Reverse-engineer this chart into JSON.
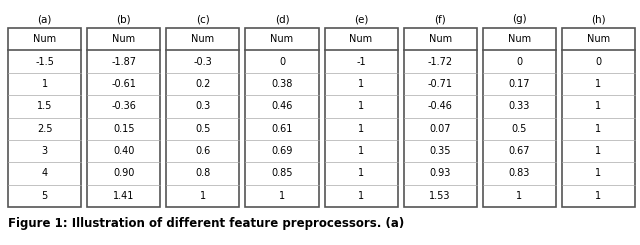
{
  "tables": [
    {
      "label": "(a)",
      "rows": [
        "Num",
        "-1.5",
        "1",
        "1.5",
        "2.5",
        "3",
        "4",
        "5"
      ]
    },
    {
      "label": "(b)",
      "rows": [
        "Num",
        "-1.87",
        "-0.61",
        "-0.36",
        "0.15",
        "0.40",
        "0.90",
        "1.41"
      ]
    },
    {
      "label": "(c)",
      "rows": [
        "Num",
        "-0.3",
        "0.2",
        "0.3",
        "0.5",
        "0.6",
        "0.8",
        "1"
      ]
    },
    {
      "label": "(d)",
      "rows": [
        "Num",
        "0",
        "0.38",
        "0.46",
        "0.61",
        "0.69",
        "0.85",
        "1"
      ]
    },
    {
      "label": "(e)",
      "rows": [
        "Num",
        "-1",
        "1",
        "1",
        "1",
        "1",
        "1",
        "1"
      ]
    },
    {
      "label": "(f)",
      "rows": [
        "Num",
        "-1.72",
        "-0.71",
        "-0.46",
        "0.07",
        "0.35",
        "0.93",
        "1.53"
      ]
    },
    {
      "label": "(g)",
      "rows": [
        "Num",
        "0",
        "0.17",
        "0.33",
        "0.5",
        "0.67",
        "0.83",
        "1"
      ]
    },
    {
      "label": "(h)",
      "rows": [
        "Num",
        "0",
        "1",
        "1",
        "1",
        "1",
        "1",
        "1"
      ]
    }
  ],
  "caption": "Figure 1: Illustration of different feature preprocessors. (a)",
  "cell_fill": "#ffffff",
  "outer_border_color": "#555555",
  "inner_border_color": "#aaaaaa",
  "font_size": 7.0,
  "label_font_size": 7.5,
  "caption_font_size": 8.5,
  "outer_linewidth": 1.2,
  "inner_linewidth": 0.5,
  "fig_width": 6.4,
  "fig_height": 2.45,
  "dpi": 100
}
